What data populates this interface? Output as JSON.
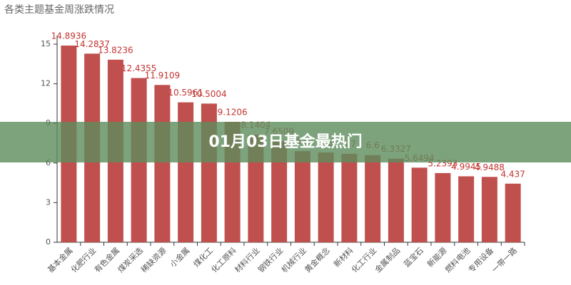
{
  "chart_data": {
    "type": "bar",
    "title": "各类主题基金周涨跌情况",
    "categories": [
      "基本金属",
      "化肥行业",
      "有色金属",
      "煤炭采选",
      "稀缺资源",
      "小金属",
      "煤化工",
      "化工原料",
      "材料行业",
      "钢铁行业",
      "机械行业",
      "黄金概念",
      "新材料",
      "化工行业",
      "金属制品",
      "蓝宝石",
      "新能源",
      "燃料电池",
      "专用设备",
      "一带一路"
    ],
    "values": [
      14.8936,
      14.2837,
      13.8236,
      12.4355,
      11.9109,
      10.5961,
      10.5004,
      9.1206,
      8.1404,
      7.6509,
      6.9,
      6.8,
      6.7,
      6.6,
      6.3327,
      5.6494,
      5.2393,
      4.9945,
      4.9488,
      4.437
    ],
    "color": "#c0504d",
    "label_color": "#c23531",
    "ylim": [
      0,
      15
    ],
    "yticks": [
      0,
      3,
      6,
      9,
      12,
      15
    ]
  },
  "banner": {
    "text": "01月03日基金最热门"
  }
}
